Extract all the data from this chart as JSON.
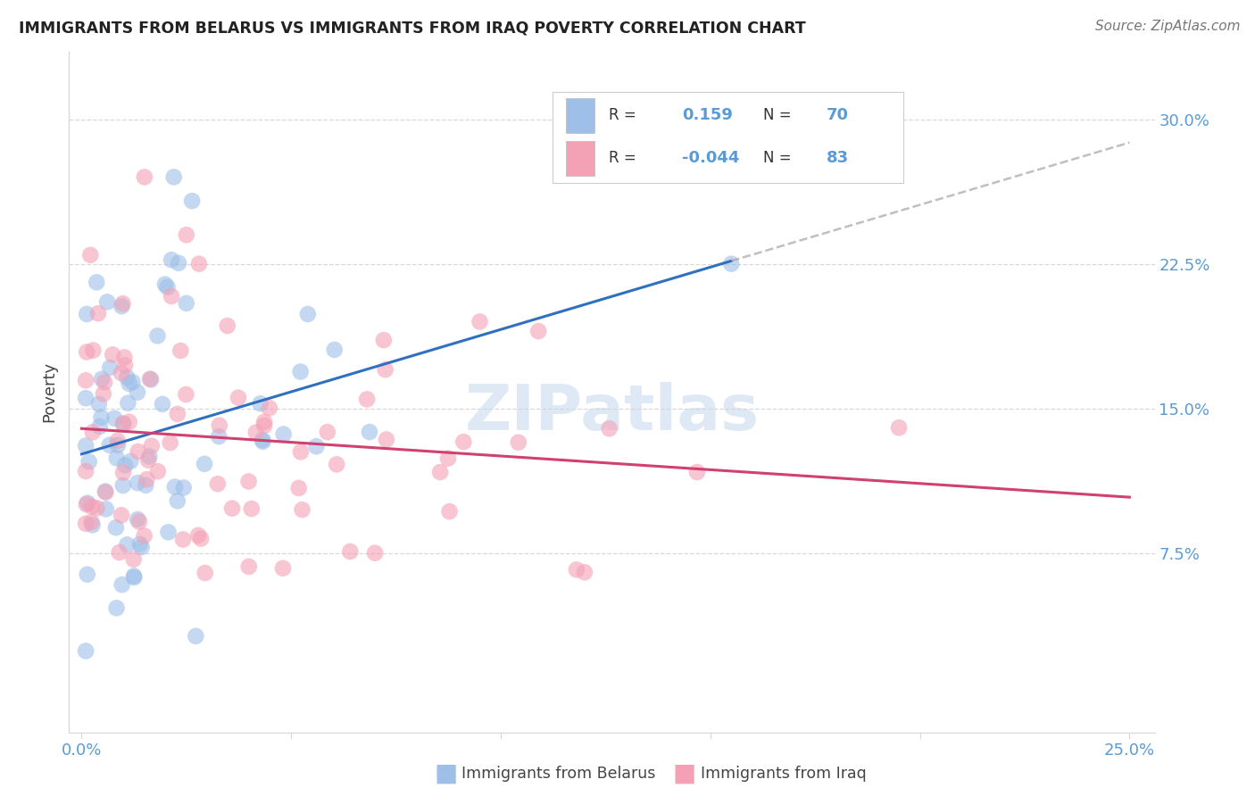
{
  "title": "IMMIGRANTS FROM BELARUS VS IMMIGRANTS FROM IRAQ POVERTY CORRELATION CHART",
  "source": "Source: ZipAtlas.com",
  "ylabel": "Poverty",
  "ytick_labels": [
    "7.5%",
    "15.0%",
    "22.5%",
    "30.0%"
  ],
  "ytick_values": [
    0.075,
    0.15,
    0.225,
    0.3
  ],
  "xlim": [
    0.0,
    0.25
  ],
  "ylim": [
    0.0,
    0.32
  ],
  "R_belarus": 0.159,
  "N_belarus": 70,
  "R_iraq": -0.044,
  "N_iraq": 83,
  "color_belarus": "#9dbfe8",
  "color_iraq": "#f4a0b5",
  "color_trend_belarus": "#3070c0",
  "color_trend_iraq": "#d04070",
  "color_trend_dashed": "#aaaaaa",
  "background_color": "#ffffff",
  "watermark": "ZIPatlas",
  "grid_color": "#d8d8d8",
  "tick_color": "#5b9bd5",
  "title_color": "#222222",
  "label_color": "#444444"
}
